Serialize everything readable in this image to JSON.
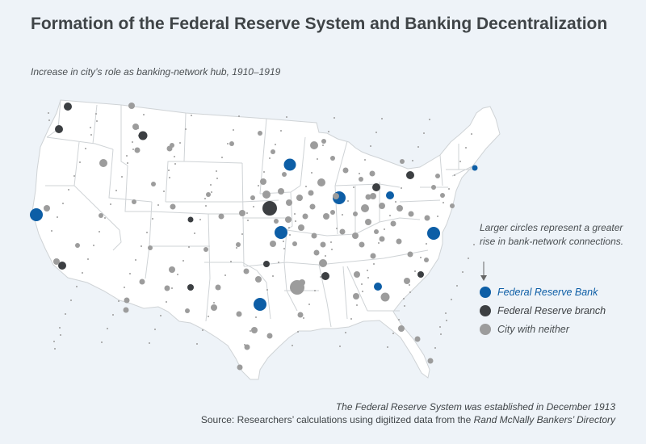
{
  "title": "Formation of the Federal Reserve System and Banking Decentralization",
  "subtitle": "Increase in city’s role as banking-network hub, 1910–1919",
  "legend": {
    "note": "Larger circles represent a greater rise in bank-network connections.",
    "items": [
      {
        "label": "Federal Reserve Bank",
        "color": "#0d5ea6"
      },
      {
        "label": "Federal Reserve branch",
        "color": "#3c3f42"
      },
      {
        "label": "City with neither",
        "color": "#9c9c9c"
      }
    ]
  },
  "footer": {
    "line1": "The Federal Reserve System was established in December 1913",
    "line2_prefix": "Source: Researchers’ calculations using digitized data from the ",
    "line2_italic": "Rand McNally Bankers’ Directory"
  },
  "colors": {
    "background": "#eef3f8",
    "land": "#ffffff",
    "state_border": "#cfd3d6",
    "fed_bank": "#0d5ea6",
    "fed_branch": "#3c3f42",
    "neither": "#9c9c9c"
  }
}
